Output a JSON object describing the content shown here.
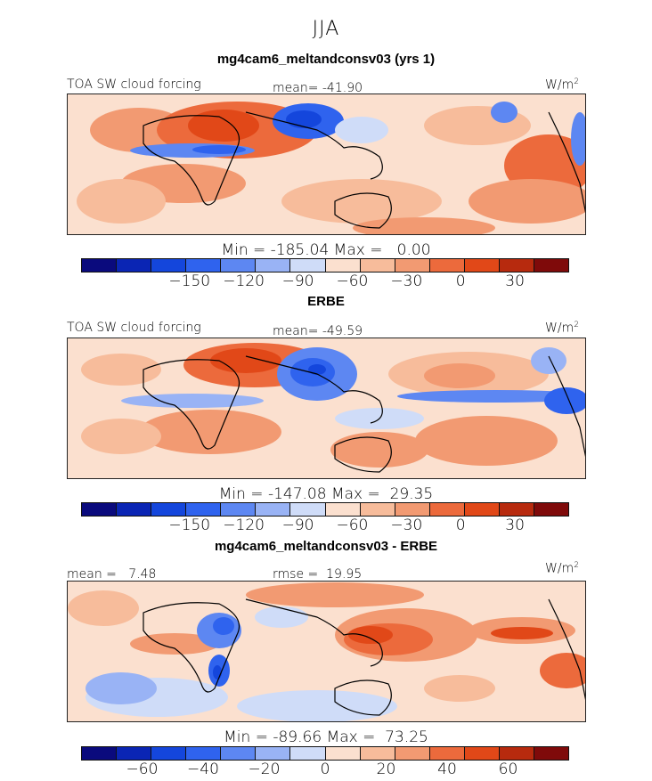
{
  "figure": {
    "title": "JJA",
    "colors": {
      "diverging_14": [
        "#0a0a7d",
        "#0a25b4",
        "#1446dc",
        "#2f63ee",
        "#5d87f2",
        "#99b3f5",
        "#cfdcf8",
        "#fbe0cf",
        "#f7bc9b",
        "#f29a72",
        "#ec6a3c",
        "#e14818",
        "#b72a0e",
        "#7f0a0a"
      ]
    }
  },
  "chart_data": [
    {
      "type": "heatmap",
      "title": "mg4cam6_meltandconsv03 (yrs 1)",
      "left_label": "TOA SW cloud forcing",
      "center_label": "mean= -41.90",
      "units_label": "W/m",
      "units_exponent": "2",
      "stats": "Min = -185.04 Max =   0.00",
      "colorbar_ticks": [
        "-150",
        "-120",
        "-90",
        "-60",
        "-30",
        "0",
        "30"
      ],
      "colorbar_tick_values": [
        -150,
        -120,
        -90,
        -60,
        -30,
        0,
        30
      ],
      "colorbar_range": [
        -210,
        60
      ],
      "colorbar_levels": 14
    },
    {
      "type": "heatmap",
      "title": "ERBE",
      "left_label": "TOA SW cloud forcing",
      "center_label": "mean= -49.59",
      "units_label": "W/m",
      "units_exponent": "2",
      "stats": "Min = -147.08 Max =  29.35",
      "colorbar_ticks": [
        "-150",
        "-120",
        "-90",
        "-60",
        "-30",
        "0",
        "30"
      ],
      "colorbar_tick_values": [
        -150,
        -120,
        -90,
        -60,
        -30,
        0,
        30
      ],
      "colorbar_range": [
        -210,
        60
      ],
      "colorbar_levels": 14
    },
    {
      "type": "heatmap",
      "title": "mg4cam6_meltandconsv03 - ERBE",
      "left_label": "mean =   7.48",
      "center_label": "rmse =  19.95",
      "units_label": "W/m",
      "units_exponent": "2",
      "stats": "Min = -89.66 Max =  73.25",
      "colorbar_ticks": [
        "-60",
        "-40",
        "-20",
        "0",
        "20",
        "40",
        "60"
      ],
      "colorbar_tick_values": [
        -60,
        -40,
        -20,
        0,
        20,
        40,
        60
      ],
      "colorbar_range": [
        -80,
        80
      ],
      "colorbar_levels": 14
    }
  ]
}
